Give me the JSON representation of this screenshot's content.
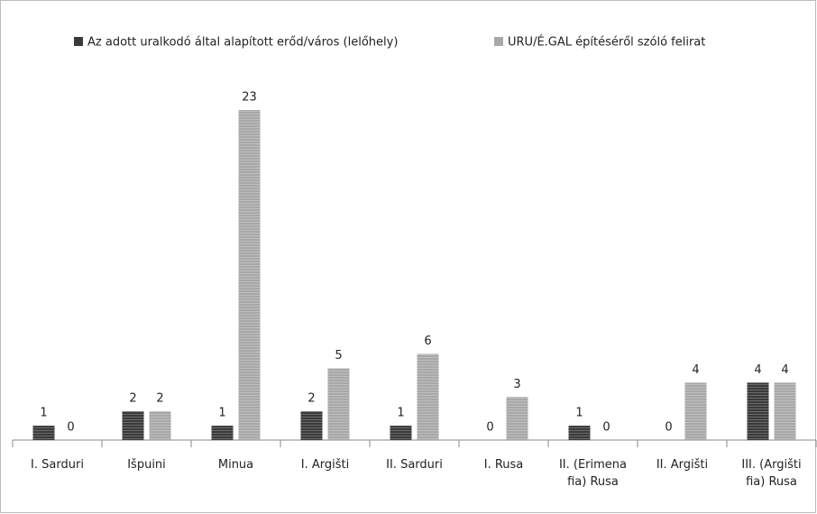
{
  "chart_data": {
    "type": "bar",
    "categories": [
      "I. Sarduri",
      "Išpuini",
      "Minua",
      "I. Argišti",
      "II. Sarduri",
      "I. Rusa",
      "II. (Erimena fia) Rusa",
      "II. Argišti",
      "III. (Argišti fia) Rusa"
    ],
    "series": [
      {
        "name": "Az adott uralkodó által alapított erőd/város (lelőhely)",
        "color": "#3a3a3a",
        "values": [
          1,
          2,
          1,
          2,
          1,
          0,
          1,
          0,
          4
        ]
      },
      {
        "name": "URU/É.GAL építéséről szóló felirat",
        "color": "#a8a8a8",
        "values": [
          0,
          2,
          23,
          5,
          6,
          3,
          0,
          4,
          4
        ]
      }
    ],
    "legend": "top"
  }
}
